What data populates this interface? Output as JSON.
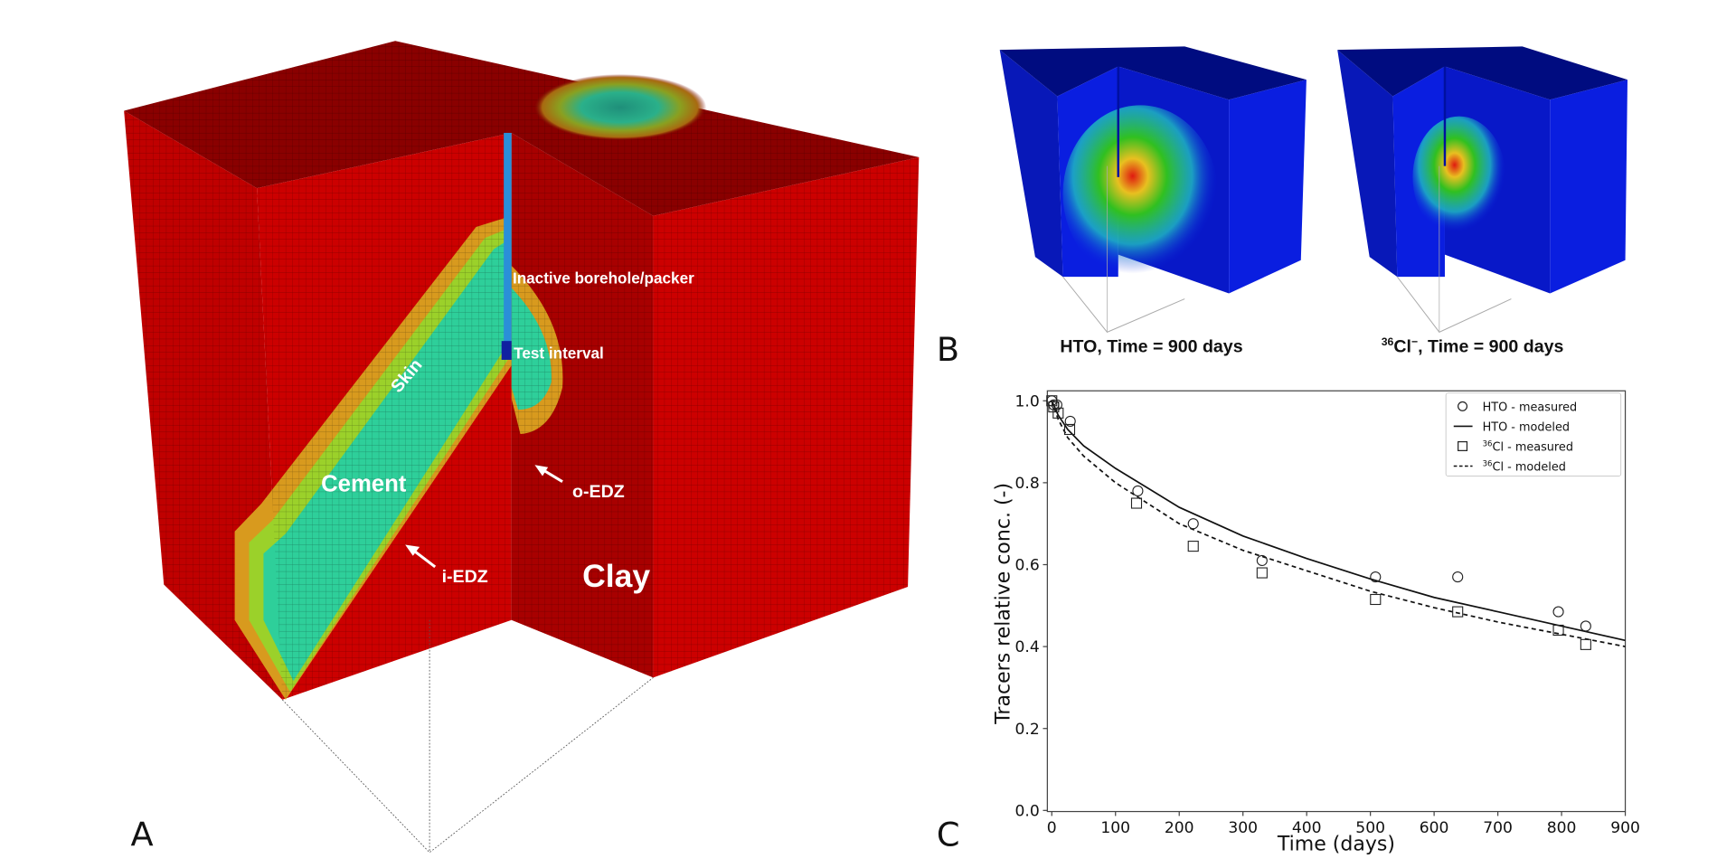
{
  "panels": {
    "a": "A",
    "b": "B",
    "c": "C"
  },
  "panel_a": {
    "labels": {
      "borehole": "Inactive borehole/packer",
      "test_interval": "Test interval",
      "skin": "Skin",
      "cement": "Cement",
      "o_edz": "o-EDZ",
      "i_edz": "i-EDZ",
      "clay": "Clay"
    },
    "colors": {
      "clay": "#c80000",
      "cement": "#2ecf9a",
      "edz": "#d89a1e",
      "skin": "#9bd12a",
      "borehole": "#2a8fd8",
      "test_interval": "#1020a0"
    }
  },
  "panel_b": {
    "hto_title": "HTO, Time = 900 days",
    "cl_title_sup": "36",
    "cl_title_main": "Cl",
    "cl_title_charge": "−",
    "cl_title_rest": ", Time = 900 days",
    "colors": {
      "background": "#0a1ee0",
      "plume_mid": "#22c020",
      "plume_core": "#e02010"
    }
  },
  "chart_data": {
    "type": "scatter+line",
    "xlabel": "Time (days)",
    "ylabel": "Tracers relative conc. (-)",
    "xlim": [
      0,
      900
    ],
    "ylim": [
      0.0,
      1.0
    ],
    "xticks": [
      0,
      100,
      200,
      300,
      400,
      500,
      600,
      700,
      800,
      900
    ],
    "yticks": [
      0.0,
      0.2,
      0.4,
      0.6,
      0.8,
      1.0
    ],
    "ytick_labels": [
      "0.0",
      "0.2",
      "0.4",
      "0.6",
      "0.8",
      "1.0"
    ],
    "grid": false,
    "legend_position": "top-right",
    "series": [
      {
        "name": "HTO - measured",
        "marker": "circle",
        "x": [
          0,
          3,
          8,
          29,
          135,
          222,
          330,
          508,
          637,
          795,
          838
        ],
        "y": [
          1.0,
          0.99,
          0.99,
          0.95,
          0.78,
          0.7,
          0.61,
          0.57,
          0.57,
          0.485,
          0.45
        ]
      },
      {
        "name": "HTO - modeled",
        "line": "solid",
        "x": [
          0,
          10,
          25,
          50,
          100,
          200,
          300,
          400,
          500,
          600,
          700,
          800,
          900
        ],
        "y": [
          1.0,
          0.965,
          0.93,
          0.89,
          0.835,
          0.74,
          0.67,
          0.615,
          0.565,
          0.52,
          0.485,
          0.45,
          0.415
        ]
      },
      {
        "name_sup": "36",
        "name": "Cl - measured",
        "marker": "square",
        "x": [
          0,
          3,
          10,
          28,
          133,
          222,
          330,
          508,
          637,
          795,
          838
        ],
        "y": [
          1.0,
          0.985,
          0.97,
          0.93,
          0.75,
          0.645,
          0.58,
          0.515,
          0.485,
          0.44,
          0.405
        ]
      },
      {
        "name_sup": "36",
        "name": "Cl - modeled",
        "line": "dashed",
        "x": [
          0,
          10,
          25,
          50,
          100,
          200,
          300,
          400,
          500,
          600,
          700,
          800,
          900
        ],
        "y": [
          1.0,
          0.955,
          0.91,
          0.865,
          0.8,
          0.7,
          0.635,
          0.585,
          0.535,
          0.495,
          0.46,
          0.43,
          0.4
        ]
      }
    ]
  }
}
